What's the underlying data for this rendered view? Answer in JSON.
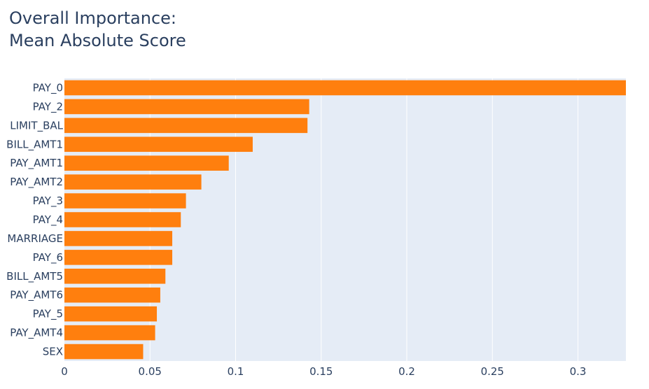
{
  "chart_data": {
    "type": "bar",
    "orientation": "horizontal",
    "title_lines": [
      "Overall Importance:",
      "Mean Absolute Score"
    ],
    "xlabel": "",
    "ylabel": "",
    "xlim": [
      0,
      0.328
    ],
    "grid": true,
    "legend": "none",
    "x_ticks": [
      {
        "value": 0,
        "label": "0"
      },
      {
        "value": 0.05,
        "label": "0.05"
      },
      {
        "value": 0.1,
        "label": "0.1"
      },
      {
        "value": 0.15,
        "label": "0.15"
      },
      {
        "value": 0.2,
        "label": "0.2"
      },
      {
        "value": 0.25,
        "label": "0.25"
      },
      {
        "value": 0.3,
        "label": "0.3"
      }
    ],
    "categories": [
      "PAY_0",
      "PAY_2",
      "LIMIT_BAL",
      "BILL_AMT1",
      "PAY_AMT1",
      "PAY_AMT2",
      "PAY_3",
      "PAY_4",
      "MARRIAGE",
      "PAY_6",
      "BILL_AMT5",
      "PAY_AMT6",
      "PAY_5",
      "PAY_AMT4",
      "SEX"
    ],
    "values": [
      0.328,
      0.143,
      0.142,
      0.11,
      0.096,
      0.08,
      0.071,
      0.068,
      0.063,
      0.063,
      0.059,
      0.056,
      0.054,
      0.053,
      0.046
    ],
    "colors": {
      "bar": "#ff7f0e",
      "plot_bg": "#e5ecf6",
      "grid": "#ffffff",
      "text": "#2a3f5f"
    }
  }
}
